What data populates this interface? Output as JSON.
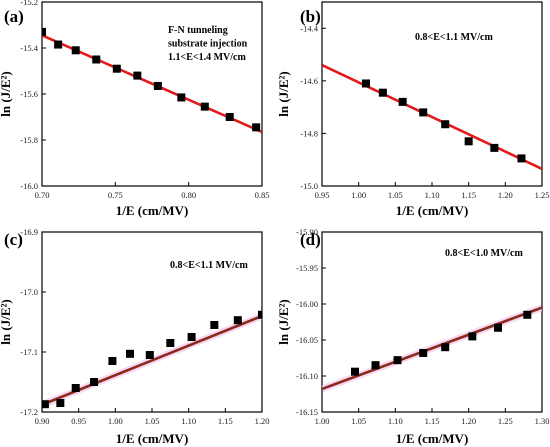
{
  "chart_data": [
    {
      "type": "scatter",
      "label": "(a)",
      "annotation": [
        "F-N tunneling",
        "substrate injection",
        "1.1<E<1.4 MV/cm"
      ],
      "xlabel": "1/E (cm/MV)",
      "ylabel": "ln (J/E²)",
      "xlim": [
        0.7,
        0.85
      ],
      "ylim": [
        -16.0,
        -15.2
      ],
      "xticks": [
        "0.70",
        "0.75",
        "0.80",
        "0.85"
      ],
      "yticks": [
        "-16.0",
        "-15.8",
        "-15.6",
        "-15.4",
        "-15.2"
      ],
      "x": [
        0.7,
        0.711,
        0.723,
        0.737,
        0.751,
        0.765,
        0.779,
        0.795,
        0.811,
        0.828,
        0.846
      ],
      "y": [
        -15.33,
        -15.385,
        -15.41,
        -15.45,
        -15.49,
        -15.52,
        -15.565,
        -15.615,
        -15.655,
        -15.7,
        -15.745
      ],
      "fit": {
        "x": [
          0.7,
          0.85
        ],
        "y": [
          -15.345,
          -15.765
        ]
      },
      "point_color": "#000000",
      "fit_color": "#e31a1c"
    },
    {
      "type": "scatter",
      "label": "(b)",
      "annotation": [
        "0.8<E<1.1 MV/cm"
      ],
      "xlabel": "1/E (cm/MV)",
      "ylabel": "ln (J/E²)",
      "xlim": [
        0.95,
        1.25
      ],
      "ylim": [
        -15.0,
        -14.3
      ],
      "xticks": [
        "0.95",
        "1.00",
        "1.05",
        "1.10",
        "1.15",
        "1.20",
        "1.25"
      ],
      "yticks": [
        "-15.0",
        "-14.8",
        "-14.6",
        "-14.4"
      ],
      "x": [
        1.01,
        1.033,
        1.06,
        1.088,
        1.118,
        1.15,
        1.185,
        1.222
      ],
      "y": [
        -14.61,
        -14.645,
        -14.68,
        -14.72,
        -14.765,
        -14.83,
        -14.855,
        -14.895
      ],
      "fit": {
        "x": [
          0.95,
          1.25
        ],
        "y": [
          -14.54,
          -14.935
        ]
      },
      "point_color": "#000000",
      "fit_color": "#e31a1c"
    },
    {
      "type": "scatter",
      "label": "(c)",
      "annotation": [
        "0.8<E<1.1 MV/cm"
      ],
      "xlabel": "1/E (cm/MV)",
      "ylabel": "ln (J/E²)",
      "xlim": [
        0.9,
        1.2
      ],
      "ylim": [
        -17.2,
        -16.9
      ],
      "xticks": [
        "0.90",
        "0.95",
        "1.00",
        "1.05",
        "1.10",
        "1.15",
        "1.20"
      ],
      "yticks": [
        "-17.2",
        "-17.1",
        "-17.0",
        "-16.9"
      ],
      "x": [
        0.904,
        0.925,
        0.946,
        0.971,
        0.996,
        1.02,
        1.047,
        1.075,
        1.104,
        1.135,
        1.167,
        1.2
      ],
      "y": [
        -17.187,
        -17.185,
        -17.16,
        -17.15,
        -17.115,
        -17.103,
        -17.105,
        -17.085,
        -17.075,
        -17.055,
        -17.047,
        -17.038
      ],
      "fit": {
        "x": [
          0.9,
          1.2
        ],
        "y": [
          -17.188,
          -17.04
        ]
      },
      "point_color": "#000000",
      "fit_color": "#8b2a1a"
    },
    {
      "type": "scatter",
      "label": "(d)",
      "annotation": [
        "0.8<E<1.0 MV/cm"
      ],
      "xlabel": "1/E (cm/MV)",
      "ylabel": "ln (J/E²)",
      "xlim": [
        1.0,
        1.3
      ],
      "ylim": [
        -16.15,
        -15.9
      ],
      "xticks": [
        "1.00",
        "1.05",
        "1.10",
        "1.15",
        "1.20",
        "1.25",
        "1.30"
      ],
      "yticks": [
        "-16.15",
        "-16.10",
        "-16.05",
        "-16.00",
        "-15.95",
        "-15.90"
      ],
      "x": [
        1.045,
        1.073,
        1.103,
        1.138,
        1.168,
        1.205,
        1.24,
        1.28
      ],
      "y": [
        -16.094,
        -16.085,
        -16.078,
        -16.068,
        -16.06,
        -16.045,
        -16.033,
        -16.015
      ],
      "fit": {
        "x": [
          1.0,
          1.3
        ],
        "y": [
          -16.118,
          -16.005
        ]
      },
      "point_color": "#000000",
      "fit_color": "#8b2a1a"
    }
  ]
}
